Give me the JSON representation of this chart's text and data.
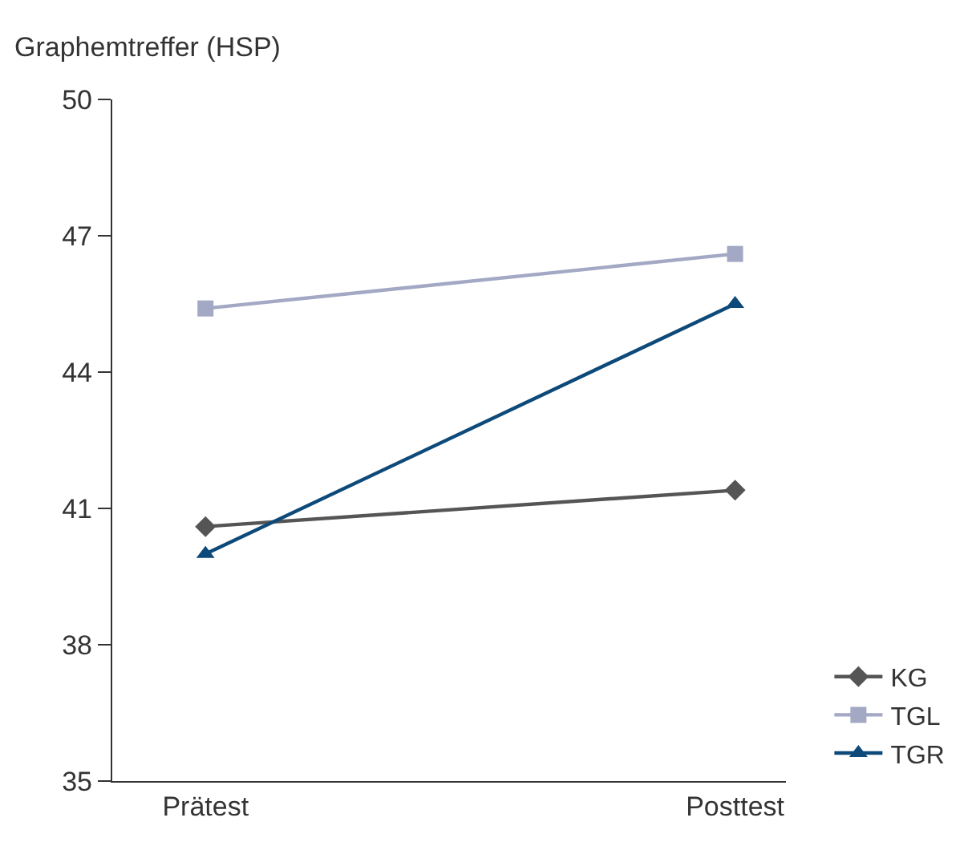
{
  "chart_data": {
    "type": "line",
    "ylabel": "Graphemtreffer (HSP)",
    "categories": [
      "Prätest",
      "Posttest"
    ],
    "series": [
      {
        "name": "KG",
        "color": "#555555",
        "values": [
          40.6,
          41.4
        ],
        "marker": "diamond"
      },
      {
        "name": "TGL",
        "color": "#a3a8c4",
        "values": [
          45.4,
          46.6
        ],
        "marker": "square"
      },
      {
        "name": "TGR",
        "color": "#0d4a7a",
        "values": [
          40.0,
          45.5
        ],
        "marker": "triangle"
      }
    ],
    "ylim": [
      35,
      50
    ],
    "yticks": [
      35,
      38,
      41,
      44,
      47,
      50
    ],
    "legend": "bottom right",
    "line_style": "solid"
  }
}
